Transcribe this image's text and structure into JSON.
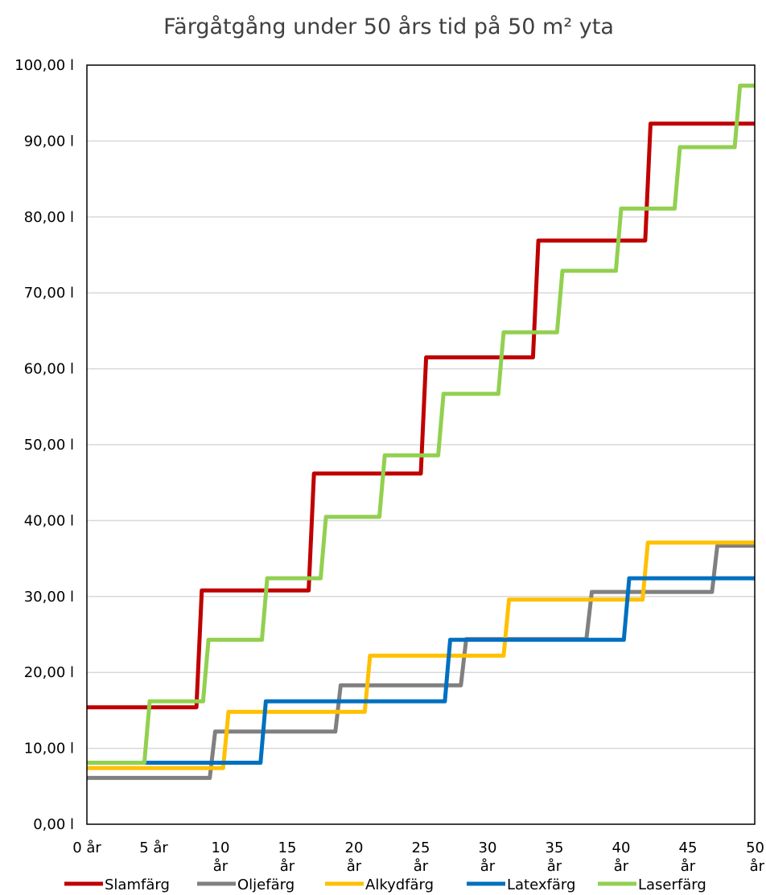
{
  "chart_data": {
    "type": "line",
    "title": "Färgåtgång under 50 års tid på 50 m² yta",
    "xlabel": "",
    "ylabel": "",
    "xlim": [
      0,
      50
    ],
    "ylim": [
      0,
      100
    ],
    "grid": true,
    "legend_position": "bottom",
    "y_ticks": [
      {
        "value": 0,
        "label": "0,00 l"
      },
      {
        "value": 10,
        "label": "10,00 l"
      },
      {
        "value": 20,
        "label": "20,00 l"
      },
      {
        "value": 30,
        "label": "30,00 l"
      },
      {
        "value": 40,
        "label": "40,00 l"
      },
      {
        "value": 50,
        "label": "50,00 l"
      },
      {
        "value": 60,
        "label": "60,00 l"
      },
      {
        "value": 70,
        "label": "70,00 l"
      },
      {
        "value": 80,
        "label": "80,00 l"
      },
      {
        "value": 90,
        "label": "90,00 l"
      },
      {
        "value": 100,
        "label": "100,00 l"
      }
    ],
    "x_ticks": [
      {
        "value": 0,
        "lines": [
          "0 år"
        ]
      },
      {
        "value": 5,
        "lines": [
          "5 år"
        ]
      },
      {
        "value": 10,
        "lines": [
          "10",
          "år"
        ]
      },
      {
        "value": 15,
        "lines": [
          "15",
          "år"
        ]
      },
      {
        "value": 20,
        "lines": [
          "20",
          "år"
        ]
      },
      {
        "value": 25,
        "lines": [
          "25",
          "år"
        ]
      },
      {
        "value": 30,
        "lines": [
          "30",
          "år"
        ]
      },
      {
        "value": 35,
        "lines": [
          "35",
          "år"
        ]
      },
      {
        "value": 40,
        "lines": [
          "40",
          "år"
        ]
      },
      {
        "value": 45,
        "lines": [
          "45",
          "år"
        ]
      },
      {
        "value": 50,
        "lines": [
          "50",
          "år"
        ]
      }
    ],
    "series": [
      {
        "name": "Slamfärg",
        "color": "#C00000",
        "x": [
          0,
          8.2,
          8.6,
          16.6,
          17,
          25,
          25.4,
          33.4,
          33.8,
          41.8,
          42.2,
          50
        ],
        "y": [
          15.4,
          15.4,
          30.8,
          30.8,
          46.2,
          46.2,
          61.5,
          61.5,
          76.9,
          76.9,
          92.3,
          92.3
        ]
      },
      {
        "name": "Oljefärg",
        "color": "#808080",
        "x": [
          0,
          9.2,
          9.6,
          18.6,
          19,
          28,
          28.4,
          37.4,
          37.8,
          46.8,
          47.2,
          50
        ],
        "y": [
          6.1,
          6.1,
          12.2,
          12.2,
          18.3,
          18.3,
          24.4,
          24.4,
          30.6,
          30.6,
          36.7,
          36.7
        ]
      },
      {
        "name": "Alkydfärg",
        "color": "#FFC000",
        "x": [
          0,
          10.2,
          10.6,
          20.8,
          21.2,
          31.2,
          31.6,
          41.6,
          42,
          50
        ],
        "y": [
          7.4,
          7.4,
          14.8,
          14.8,
          22.2,
          22.2,
          29.6,
          29.6,
          37.1,
          37.1
        ]
      },
      {
        "name": "Latexfärg",
        "color": "#0070C0",
        "x": [
          0,
          13,
          13.4,
          26.8,
          27.2,
          40.2,
          40.6,
          50
        ],
        "y": [
          8.1,
          8.1,
          16.2,
          16.2,
          24.3,
          24.3,
          32.4,
          32.4
        ]
      },
      {
        "name": "Laserfärg",
        "color": "#92D050",
        "x": [
          0,
          4.3,
          4.7,
          8.7,
          9.1,
          13.1,
          13.5,
          17.5,
          17.9,
          21.9,
          22.3,
          26.3,
          26.7,
          30.8,
          31.2,
          35.2,
          35.6,
          39.6,
          40,
          44,
          44.4,
          48.5,
          48.9,
          50
        ],
        "y": [
          8.1,
          8.1,
          16.2,
          16.2,
          24.3,
          24.3,
          32.4,
          32.4,
          40.5,
          40.5,
          48.6,
          48.6,
          56.7,
          56.7,
          64.8,
          64.8,
          72.9,
          72.9,
          81.1,
          81.1,
          89.2,
          89.2,
          97.3,
          97.3
        ]
      }
    ]
  }
}
